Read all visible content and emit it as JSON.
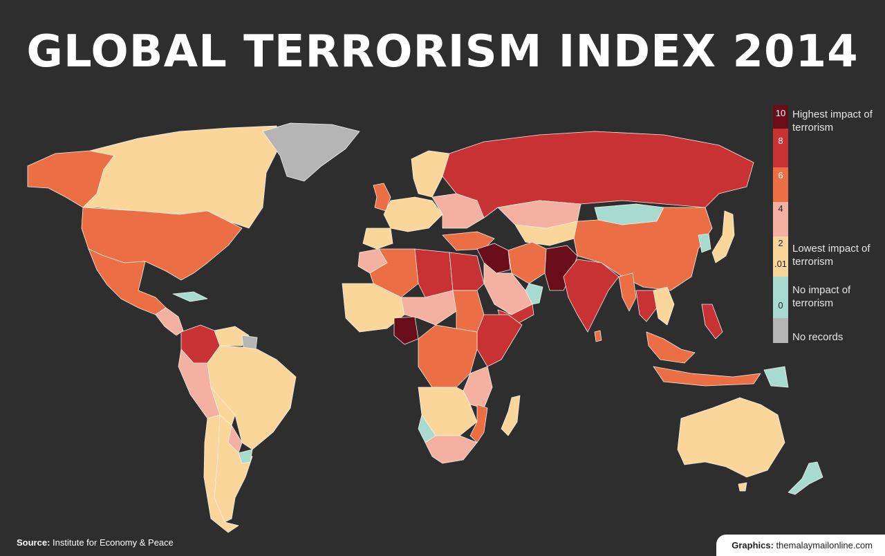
{
  "title": "GLOBAL TERRORISM INDEX 2014",
  "legend": {
    "ticks": [
      "10",
      "8",
      "6",
      "4",
      "2",
      ".01",
      "0"
    ],
    "labels": {
      "highest": "Highest impact of terrorism",
      "lowest": "Lowest impact of terrorism",
      "none": "No impact of terrorism",
      "no_records": "No records"
    },
    "colors": {
      "level_10": "#6a0d1a",
      "level_8": "#c83235",
      "level_6": "#ec6e45",
      "level_4": "#f4b0a0",
      "level_2": "#fbd69a",
      "level_0": "#a8dbd0",
      "no_records": "#b5b5b5"
    }
  },
  "footer": {
    "source_label": "Source:",
    "source_text": "Institute for Economy & Peace",
    "graphics_label": "Graphics:",
    "graphics_text": "themalaymailonline.com"
  }
}
